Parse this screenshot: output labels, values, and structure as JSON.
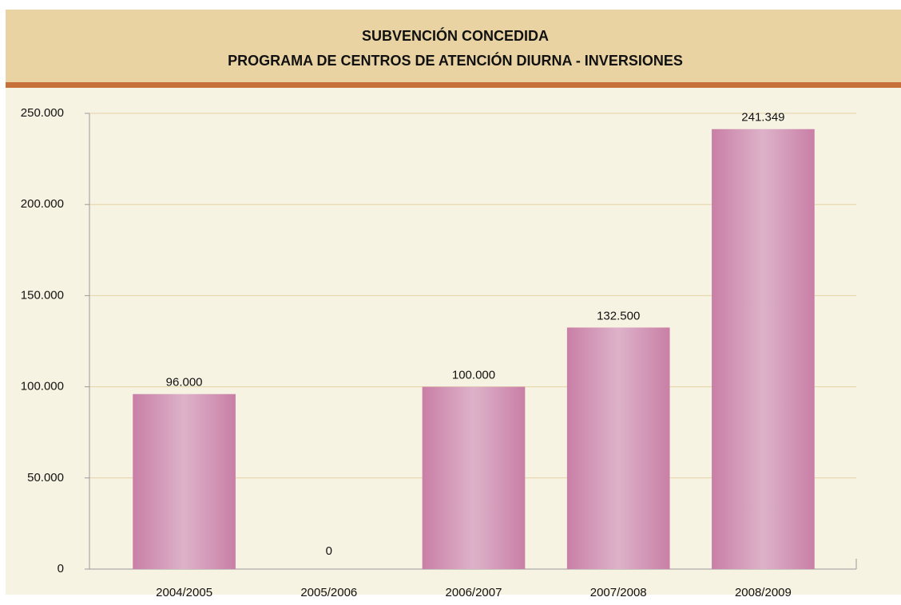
{
  "chart_data": {
    "type": "bar",
    "title": "SUBVENCIÓN CONCEDIDA",
    "subtitle": "PROGRAMA DE CENTROS DE ATENCIÓN DIURNA - INVERSIONES",
    "categories": [
      "2004/2005",
      "2005/2006",
      "2006/2007",
      "2007/2008",
      "2008/2009"
    ],
    "values": [
      96000,
      0,
      100000,
      132500,
      241349
    ],
    "value_labels": [
      "96.000",
      "0",
      "100.000",
      "132.500",
      "241.349"
    ],
    "color": "#c97fa6",
    "ylim": [
      0,
      250000
    ],
    "yticks": [
      0,
      {
        "value": 50000,
        "label": "50.000"
      },
      {
        "value": 100000,
        "label": "100.000"
      },
      {
        "value": 150000,
        "label": "150.000"
      },
      {
        "value": 200000,
        "label": "200.000"
      },
      {
        "value": 250000,
        "label": "250.000"
      }
    ],
    "grid": true
  }
}
